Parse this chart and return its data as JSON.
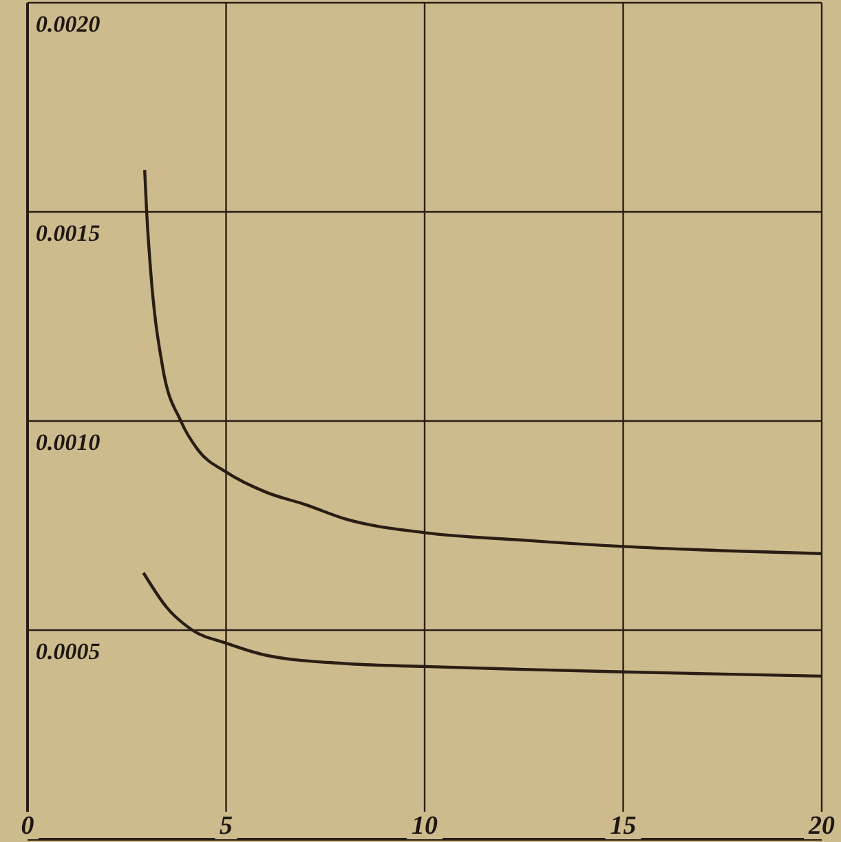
{
  "chart_data": {
    "type": "line",
    "xlim": [
      0,
      20
    ],
    "ylim": [
      0,
      0.002
    ],
    "xticks": [
      0,
      5,
      10,
      15,
      20
    ],
    "yticks": [
      {
        "value": 0.0005,
        "label": "0.0005"
      },
      {
        "value": 0.001,
        "label": "0.0010"
      },
      {
        "value": 0.0015,
        "label": "0.0015"
      },
      {
        "value": 0.002,
        "label": "0.0020"
      }
    ],
    "grid": true,
    "marker": "none",
    "line_style": "solid",
    "series": [
      {
        "color": "#2a1e14",
        "x": [
          2.95,
          3.0,
          3.1,
          3.4,
          3.86,
          4.3,
          5,
          6,
          7,
          8,
          10,
          12.5,
          15,
          17.5,
          20
        ],
        "values": [
          0.0016,
          0.0015,
          0.00136,
          0.00113,
          0.001,
          0.00093,
          0.000878,
          0.00083,
          0.0008,
          0.000766,
          0.000733,
          0.000715,
          0.0007,
          0.00069,
          0.000683
        ]
      },
      {
        "color": "#2a1e14",
        "x": [
          2.92,
          3.5,
          4.15,
          5,
          6,
          8,
          10,
          12.5,
          15,
          17.5,
          20
        ],
        "values": [
          0.000637,
          0.000555,
          0.0005,
          0.000469,
          0.00044,
          0.00042,
          0.000413,
          0.000406,
          0.0004,
          0.000395,
          0.00039
        ]
      }
    ]
  }
}
